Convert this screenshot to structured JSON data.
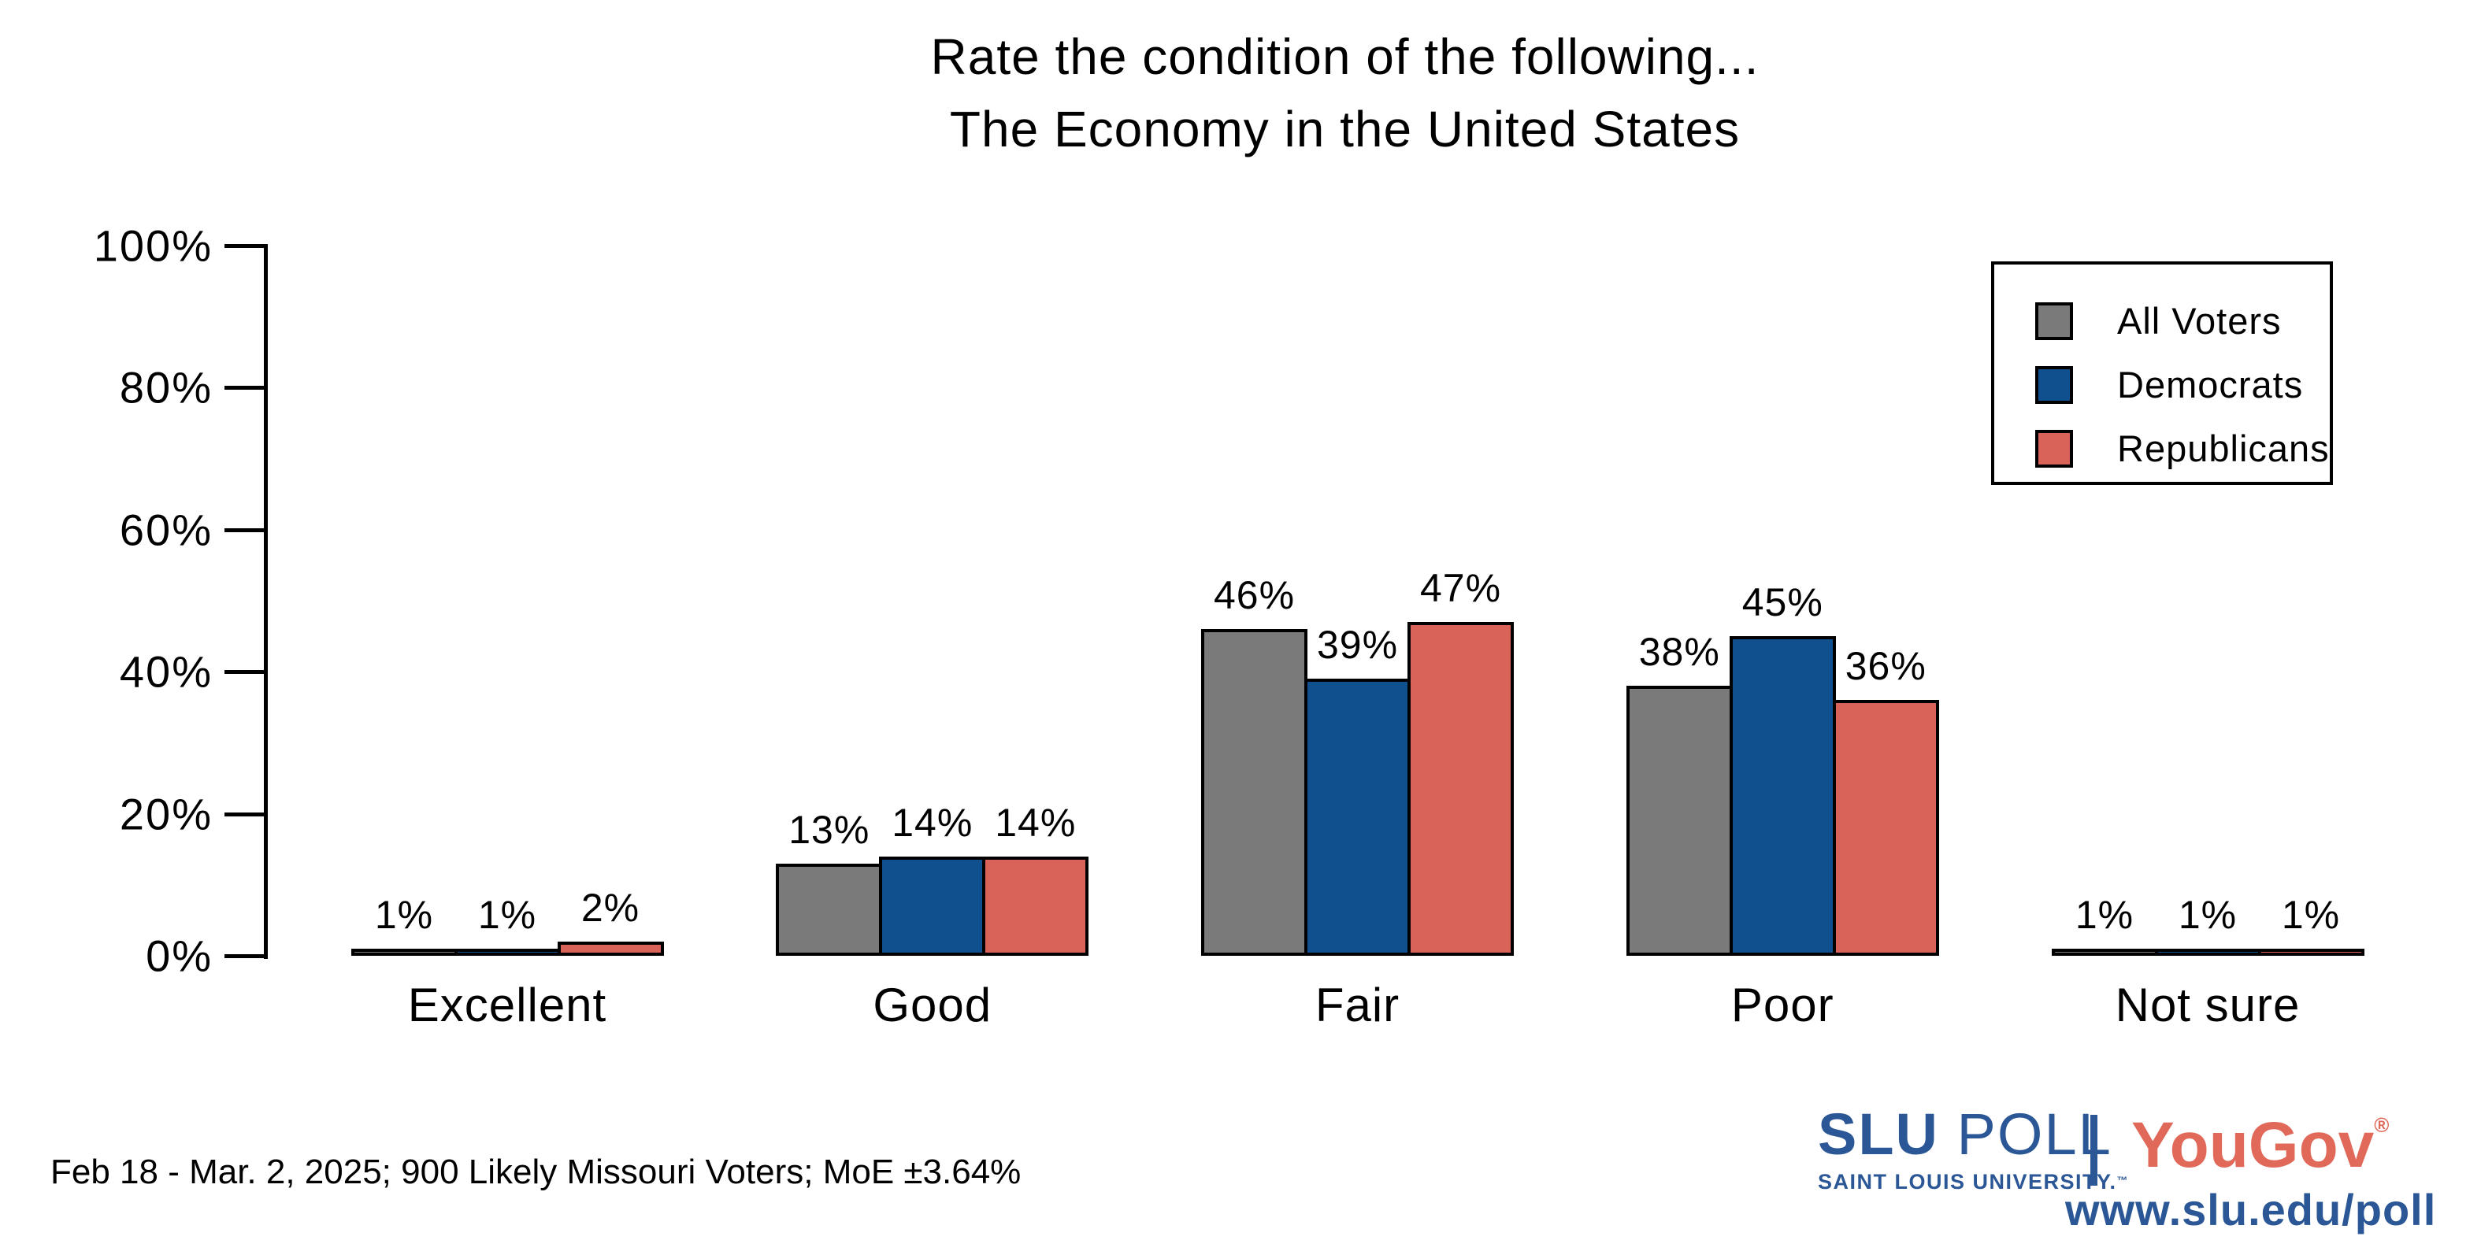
{
  "title": {
    "line1": "Rate the condition of the following...",
    "line2": "The Economy in the United States"
  },
  "axis": {
    "ticks_top_to_bottom": [
      "100%",
      "80%",
      "60%",
      "40%",
      "20%",
      "0%"
    ]
  },
  "legend": {
    "items": [
      {
        "label": "All Voters",
        "color": "#7a7a7a"
      },
      {
        "label": "Democrats",
        "color": "#11508e"
      },
      {
        "label": "Republicans",
        "color": "#d96358"
      }
    ]
  },
  "chart_data": {
    "type": "bar",
    "title": "Rate the condition of the following... The Economy in the United States",
    "categories": [
      "Excellent",
      "Good",
      "Fair",
      "Poor",
      "Not sure"
    ],
    "series": [
      {
        "name": "All Voters",
        "color": "#7a7a7a",
        "values": [
          1,
          13,
          46,
          38,
          1
        ]
      },
      {
        "name": "Democrats",
        "color": "#11508e",
        "values": [
          1,
          14,
          39,
          45,
          1
        ]
      },
      {
        "name": "Republicans",
        "color": "#d96358",
        "values": [
          2,
          14,
          47,
          36,
          1
        ]
      }
    ],
    "xlabel": "",
    "ylabel": "",
    "ylim": [
      0,
      100
    ],
    "yticks": [
      "0%",
      "20%",
      "40%",
      "60%",
      "80%",
      "100%"
    ],
    "grid": false,
    "legend_position": "top-right",
    "value_label_format": "{v}%"
  },
  "footer": {
    "note": "Feb 18 - Mar. 2, 2025; 900 Likely Missouri Voters; MoE ±3.64%"
  },
  "branding": {
    "slu": "SLU",
    "poll": " POLL",
    "slu_sub": "SAINT LOUIS UNIVERSITY.",
    "tm": "™",
    "yougov": "YouGov",
    "reg": "®",
    "url": "www.slu.edu/poll"
  },
  "colors": {
    "bar_border": "#000000",
    "slu_blue": "#2b5796",
    "yougov_red": "#e0695a"
  }
}
